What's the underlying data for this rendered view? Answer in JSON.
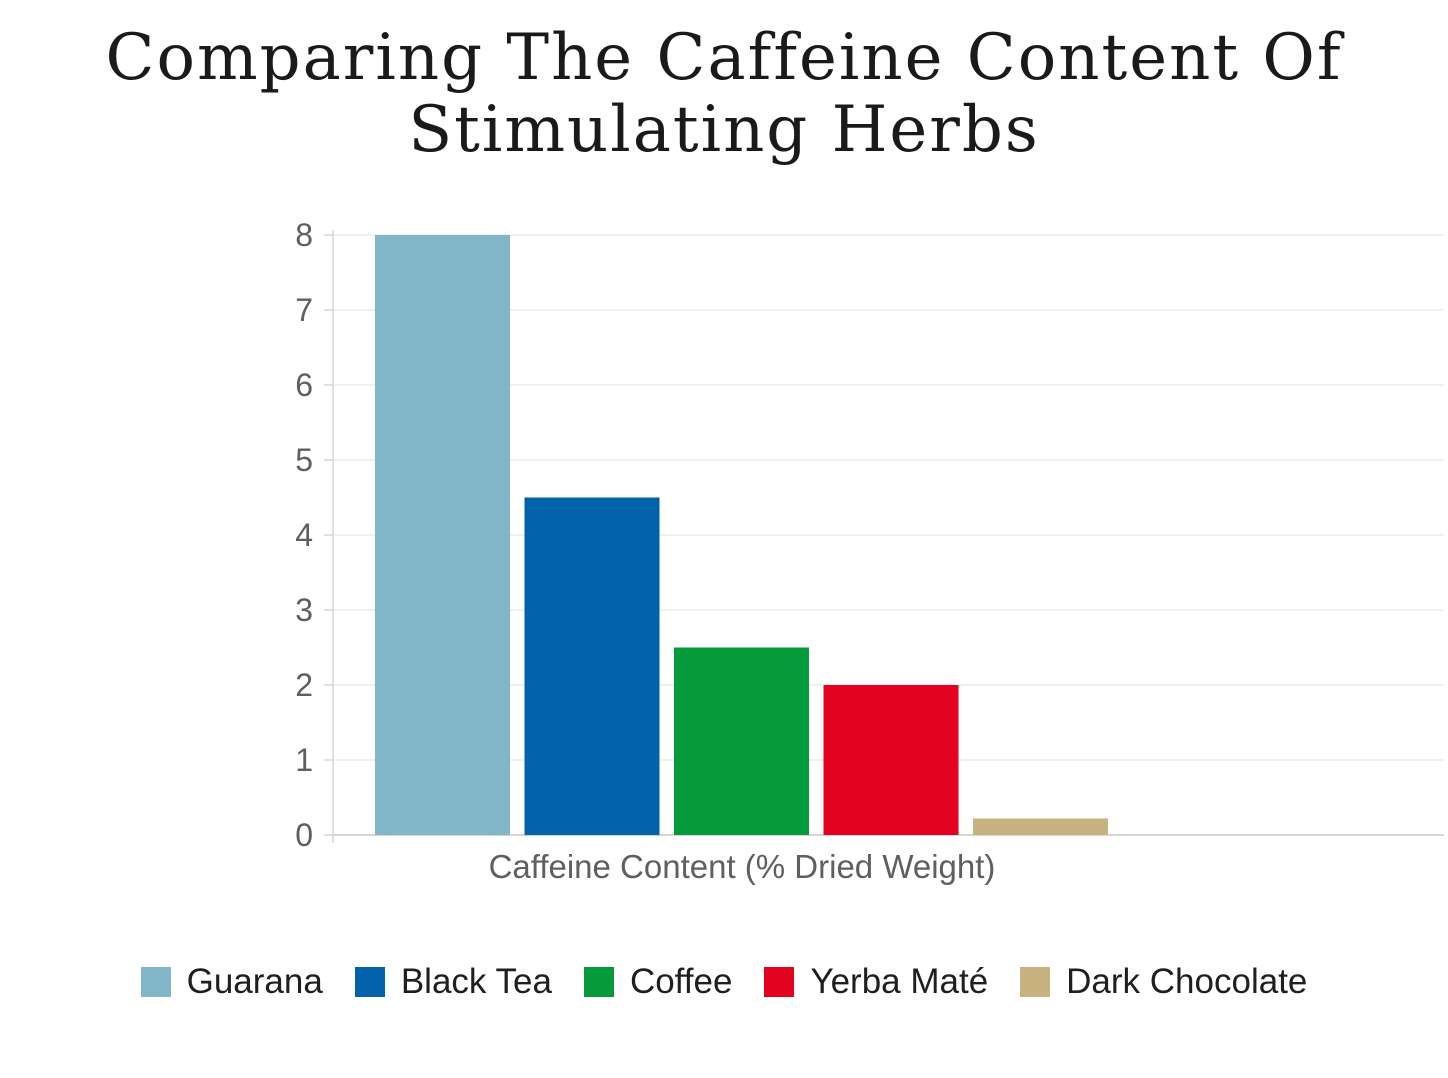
{
  "title_lines": [
    "Comparing The Caffeine Content Of",
    "Stimulating Herbs"
  ],
  "chart_data": {
    "type": "bar",
    "title": "Comparing The Caffeine Content Of Stimulating Herbs",
    "xlabel": "Caffeine Content (% Dried Weight)",
    "ylabel": "",
    "ylim": [
      0,
      8
    ],
    "yticks": [
      0,
      1,
      2,
      3,
      4,
      5,
      6,
      7,
      8
    ],
    "grid": true,
    "legend_position": "bottom",
    "series": [
      {
        "name": "Guarana",
        "values": [
          8
        ],
        "color": "#80b6c8"
      },
      {
        "name": "Black Tea",
        "values": [
          4.5
        ],
        "color": "#0262aa"
      },
      {
        "name": "Coffee",
        "values": [
          2.5
        ],
        "color": "#059a3c"
      },
      {
        "name": "Yerba Maté",
        "values": [
          2
        ],
        "color": "#e3021f"
      },
      {
        "name": "Dark Chocolate",
        "values": [
          0.22
        ],
        "color": "#c8b27f"
      }
    ]
  }
}
